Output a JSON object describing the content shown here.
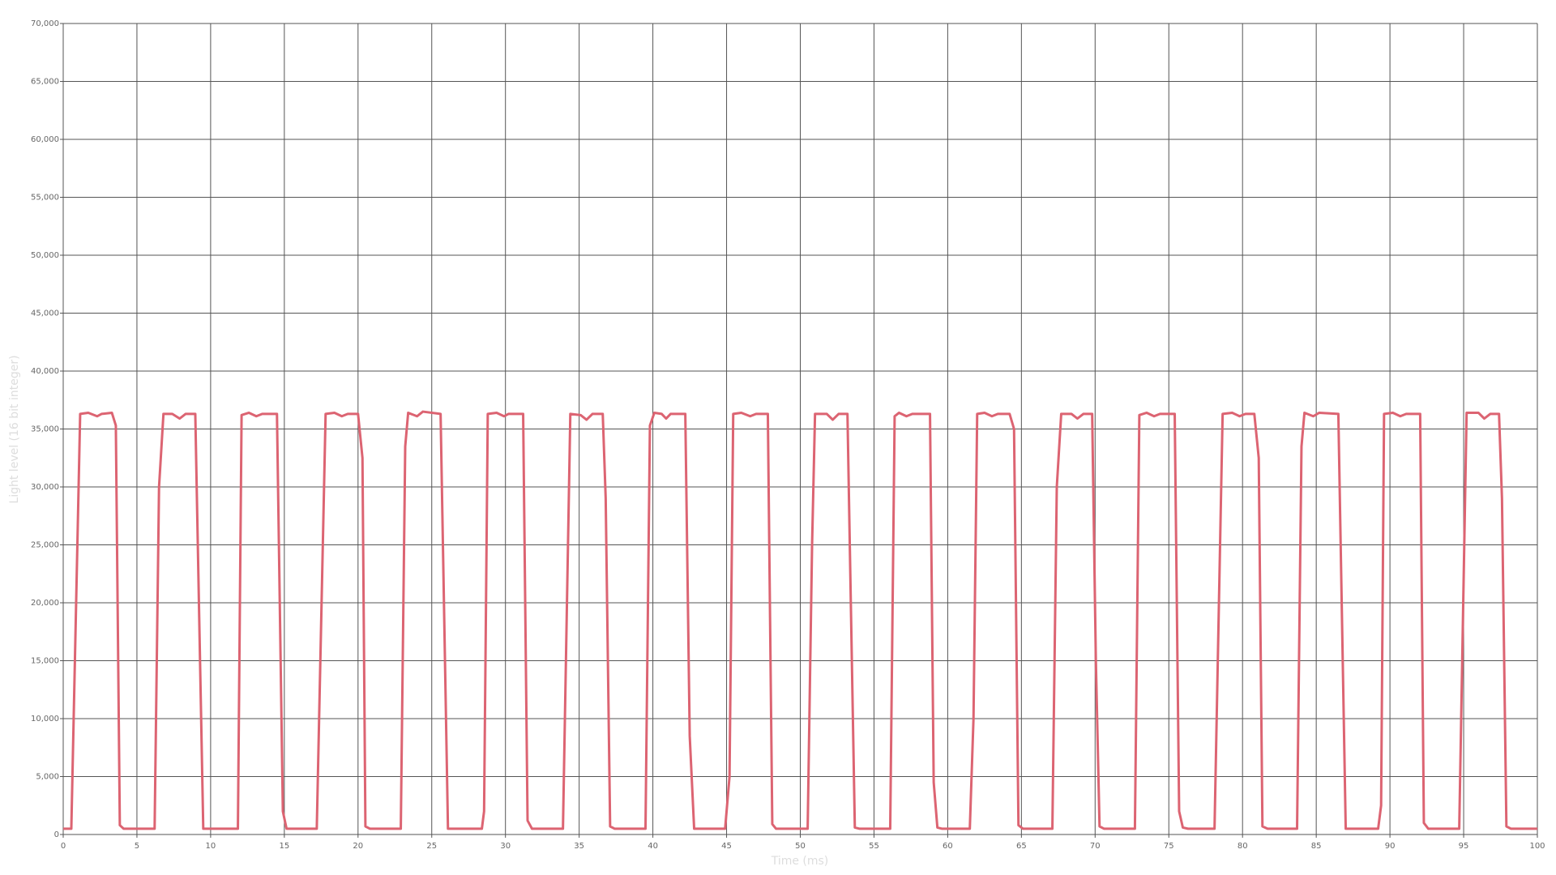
{
  "chart_data": {
    "type": "line",
    "x_label": "Time (ms)",
    "y_label": "Light level (16 bit integer)",
    "color": "#dc6472",
    "grid": true,
    "xlim": [
      0,
      100
    ],
    "xticks": [
      0,
      5,
      10,
      15,
      20,
      25,
      30,
      35,
      40,
      45,
      50,
      55,
      60,
      65,
      70,
      75,
      80,
      85,
      90,
      95,
      100
    ],
    "ylim": [
      0,
      70000
    ],
    "yticks": [
      0,
      {
        "value": 5000,
        "label": "5,000"
      },
      {
        "value": 10000,
        "label": "10,000"
      },
      {
        "value": 15000,
        "label": "15,000"
      },
      {
        "value": 20000,
        "label": "20,000"
      },
      {
        "value": 25000,
        "label": "25,000"
      },
      {
        "value": 30000,
        "label": "30,000"
      },
      {
        "value": 35000,
        "label": "35,000"
      },
      {
        "value": 40000,
        "label": "40,000"
      },
      {
        "value": 45000,
        "label": "45,000"
      },
      {
        "value": 50000,
        "label": "50,000"
      },
      {
        "value": 55000,
        "label": "55,000"
      },
      {
        "value": 60000,
        "label": "60,000"
      },
      {
        "value": 65000,
        "label": "65,000"
      },
      {
        "value": 70000,
        "label": "70,000"
      }
    ],
    "x": [
      0,
      0.55,
      1.15,
      1.7,
      2.3,
      2.6,
      3.3,
      3.57,
      3.84,
      4.1,
      6.2,
      6.5,
      6.8,
      7.4,
      7.9,
      8.3,
      8.96,
      9.5,
      11.85,
      12.1,
      12.6,
      13.1,
      13.5,
      14.5,
      14.9,
      15.15,
      17.2,
      17.8,
      18.4,
      18.9,
      19.3,
      20.0,
      20.3,
      20.5,
      20.8,
      22.9,
      23.2,
      23.4,
      24.0,
      24.4,
      25.6,
      26.1,
      28.4,
      28.55,
      28.8,
      29.4,
      29.9,
      30.2,
      31.2,
      31.5,
      31.8,
      33.9,
      34.4,
      35.1,
      35.5,
      35.9,
      36.6,
      36.8,
      37.1,
      37.4,
      39.5,
      39.8,
      40.1,
      40.6,
      40.9,
      41.2,
      42.2,
      42.5,
      42.8,
      44.9,
      45.2,
      45.45,
      46.0,
      46.6,
      47.0,
      47.8,
      48.1,
      48.35,
      50.5,
      50.8,
      51.0,
      51.8,
      52.2,
      52.6,
      53.2,
      53.7,
      54.0,
      56.1,
      56.4,
      56.7,
      57.2,
      57.6,
      58.8,
      59.05,
      59.3,
      59.6,
      61.5,
      61.75,
      62.0,
      62.5,
      63.0,
      63.4,
      64.2,
      64.5,
      64.8,
      65.1,
      67.1,
      67.4,
      67.7,
      68.4,
      68.8,
      69.2,
      69.8,
      70.05,
      70.3,
      70.6,
      72.7,
      73.0,
      73.5,
      74.0,
      74.4,
      75.4,
      75.7,
      75.95,
      76.3,
      78.1,
      78.65,
      79.3,
      79.8,
      80.2,
      80.8,
      81.1,
      81.35,
      81.7,
      83.7,
      84.0,
      84.2,
      84.8,
      85.2,
      86.5,
      87.0,
      89.2,
      89.4,
      89.6,
      90.2,
      90.7,
      91.1,
      92.05,
      92.3,
      92.6,
      94.7,
      95.2,
      96.0,
      96.4,
      96.8,
      97.4,
      97.6,
      97.9,
      98.2,
      100
    ],
    "values": [
      500,
      500,
      36300,
      36400,
      36100,
      36300,
      36400,
      35300,
      800,
      500,
      500,
      30000,
      36300,
      36300,
      35900,
      36300,
      36300,
      500,
      500,
      36200,
      36400,
      36100,
      36300,
      36300,
      2000,
      500,
      500,
      36300,
      36400,
      36100,
      36300,
      36300,
      32500,
      700,
      500,
      500,
      33500,
      36400,
      36100,
      36500,
      36300,
      500,
      500,
      2000,
      36300,
      36400,
      36100,
      36300,
      36300,
      1200,
      500,
      500,
      36300,
      36200,
      35800,
      36300,
      36300,
      29000,
      700,
      500,
      500,
      35300,
      36400,
      36300,
      35900,
      36300,
      36300,
      8500,
      500,
      500,
      5000,
      36300,
      36400,
      36100,
      36300,
      36300,
      900,
      500,
      500,
      25000,
      36300,
      36300,
      35800,
      36300,
      36300,
      600,
      500,
      500,
      36100,
      36400,
      36100,
      36300,
      36300,
      4500,
      600,
      500,
      500,
      10000,
      36300,
      36400,
      36100,
      36300,
      36300,
      35000,
      800,
      500,
      500,
      30000,
      36300,
      36300,
      35900,
      36300,
      36300,
      15000,
      700,
      500,
      500,
      36200,
      36400,
      36100,
      36300,
      36300,
      2000,
      600,
      500,
      500,
      36300,
      36400,
      36100,
      36300,
      36300,
      32500,
      700,
      500,
      500,
      33500,
      36400,
      36100,
      36400,
      36300,
      500,
      500,
      2500,
      36300,
      36400,
      36100,
      36300,
      36300,
      1000,
      500,
      500,
      36400,
      36400,
      35900,
      36300,
      36300,
      29000,
      700,
      500,
      500
    ]
  }
}
